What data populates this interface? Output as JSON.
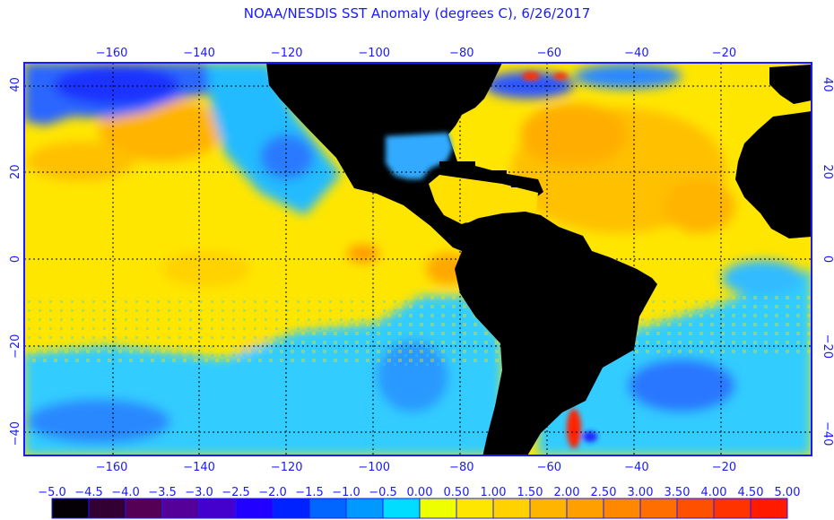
{
  "title": "NOAA/NESDIS SST Anomaly (degrees C), 6/26/2017",
  "map": {
    "lon_range": [
      -180,
      0
    ],
    "lat_range": [
      -45,
      45
    ],
    "lon_ticks": [
      -160,
      -140,
      -120,
      -100,
      -80,
      -60,
      -40,
      -20
    ],
    "lat_ticks": [
      40,
      20,
      0,
      -20,
      -40
    ],
    "lon_tick_labels": [
      "−160",
      "−140",
      "−120",
      "−100",
      "−80",
      "−60",
      "−40",
      "−20"
    ],
    "lat_tick_labels": [
      "40",
      "20",
      "0",
      "−20",
      "−40"
    ],
    "land_color": "#000000"
  },
  "colorbar": {
    "labels": [
      "−5.0",
      "−4.5",
      "−4.0",
      "−3.5",
      "−3.0",
      "−2.5",
      "−2.0",
      "−1.5",
      "−1.0",
      "−0.5",
      "0.00",
      "0.50",
      "1.00",
      "1.50",
      "2.00",
      "2.50",
      "3.00",
      "3.50",
      "4.00",
      "4.50",
      "5.00"
    ],
    "colors": [
      "#050005",
      "#330033",
      "#550055",
      "#550099",
      "#4400cc",
      "#2200ff",
      "#0022ff",
      "#0066ff",
      "#0099ff",
      "#00ddff",
      "#eeff00",
      "#ffe600",
      "#ffd200",
      "#ffb400",
      "#ffa000",
      "#ff8800",
      "#ff6e00",
      "#ff5000",
      "#ff3300",
      "#ff1a00"
    ]
  }
}
